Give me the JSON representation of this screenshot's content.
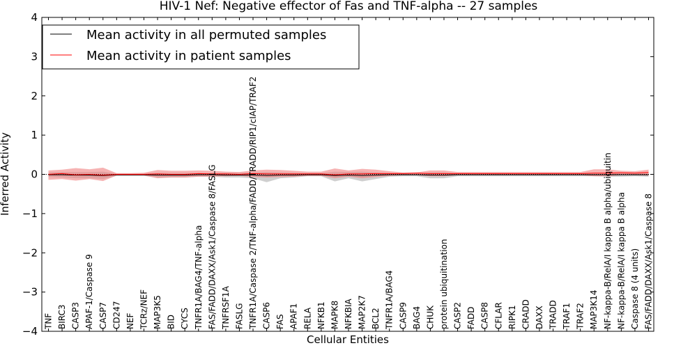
{
  "chart_data": {
    "type": "line",
    "title": "HIV-1 Nef: Negative effector of Fas and TNF-alpha -- 27 samples",
    "xlabel": "Cellular Entities",
    "ylabel": "Inferred Activity",
    "ylim": [
      -4,
      4
    ],
    "yticks": [
      -4,
      -3,
      -2,
      -1,
      0,
      1,
      2,
      3,
      4
    ],
    "ytick_labels": [
      "−4",
      "−3",
      "−2",
      "−1",
      "0",
      "1",
      "2",
      "3",
      "4"
    ],
    "categories": [
      "TNF",
      "BIRC3",
      "CASP3",
      "APAF-1/Caspase 9",
      "CASP7",
      "CD247",
      "NEF",
      "TCRz/NEF",
      "MAP3K5",
      "BID",
      "CYCS",
      "TNFR1A/BAG4/TNF-alpha",
      "FAS/FADD/DAXX/Ask1/Caspase 8/FASLG",
      "TNFRSF1A",
      "FASLG",
      "TNFR1A/Caspase 2/TNF-alpha/FADD/TRADD/RIP1/cIAP/TRAF2",
      "CASP6",
      "FAS",
      "APAF1",
      "RELA",
      "NFKB1",
      "MAPK8",
      "NFKBIA",
      "MAP2K7",
      "BCL2",
      "TNFR1A/BAG4",
      "CASP9",
      "BAG4",
      "CHUK",
      "protein ubiquitination",
      "CASP2",
      "FADD",
      "CASP8",
      "CFLAR",
      "RIPK1",
      "CRADD",
      "DAXX",
      "TRADD",
      "TRAF1",
      "TRAF2",
      "MAP3K14",
      "NF-kappa-B/RelA/I kappa B alpha/ubiquitin",
      "NF-kappa-B/RelA/I kappa B alpha",
      "Caspase 8 (4 units)",
      "FAS/FADD/DAXX/Ask1/Caspase 8"
    ],
    "series": [
      {
        "name": "Mean activity in all permuted samples",
        "color": "#000000",
        "values": [
          -0.01,
          -0.01,
          -0.02,
          -0.02,
          -0.03,
          -0.01,
          -0.01,
          -0.01,
          -0.02,
          -0.02,
          -0.02,
          -0.01,
          -0.01,
          -0.02,
          -0.02,
          -0.02,
          -0.03,
          -0.02,
          -0.02,
          -0.01,
          -0.01,
          -0.03,
          -0.02,
          -0.03,
          -0.02,
          -0.01,
          -0.01,
          -0.01,
          -0.02,
          -0.02,
          -0.01,
          -0.01,
          -0.01,
          -0.01,
          -0.01,
          -0.01,
          -0.01,
          -0.01,
          -0.01,
          -0.01,
          -0.01,
          -0.01,
          -0.01,
          -0.01,
          -0.01
        ],
        "band_upper": [
          0.05,
          0.06,
          0.06,
          0.06,
          0.07,
          0.02,
          0.02,
          0.02,
          0.04,
          0.04,
          0.04,
          0.03,
          0.03,
          0.04,
          0.04,
          0.05,
          0.06,
          0.05,
          0.04,
          0.03,
          0.03,
          0.07,
          0.06,
          0.07,
          0.05,
          0.03,
          0.02,
          0.02,
          0.05,
          0.05,
          0.02,
          0.02,
          0.02,
          0.02,
          0.02,
          0.02,
          0.02,
          0.02,
          0.02,
          0.02,
          0.02,
          0.03,
          0.03,
          0.02,
          0.03
        ],
        "band_lower": [
          -0.07,
          -0.08,
          -0.1,
          -0.1,
          -0.12,
          -0.04,
          -0.04,
          -0.04,
          -0.08,
          -0.08,
          -0.08,
          -0.06,
          -0.06,
          -0.08,
          -0.08,
          -0.1,
          -0.2,
          -0.1,
          -0.08,
          -0.05,
          -0.05,
          -0.18,
          -0.1,
          -0.18,
          -0.12,
          -0.06,
          -0.05,
          -0.05,
          -0.1,
          -0.1,
          -0.05,
          -0.05,
          -0.05,
          -0.05,
          -0.05,
          -0.05,
          -0.05,
          -0.05,
          -0.05,
          -0.05,
          -0.05,
          -0.06,
          -0.06,
          -0.05,
          -0.06
        ]
      },
      {
        "name": "Mean activity in patient samples",
        "color": "#ff0000",
        "values": [
          0.0,
          0.02,
          -0.01,
          0.0,
          -0.02,
          0.0,
          0.0,
          0.0,
          0.01,
          0.0,
          0.0,
          0.02,
          0.01,
          0.01,
          0.0,
          0.02,
          0.01,
          0.01,
          0.01,
          0.01,
          0.01,
          -0.01,
          0.01,
          0.01,
          0.02,
          0.02,
          0.02,
          0.03,
          0.02,
          0.02,
          0.02,
          0.02,
          0.02,
          0.02,
          0.02,
          0.02,
          0.02,
          0.02,
          0.02,
          0.02,
          0.03,
          0.03,
          0.04,
          0.03,
          0.05
        ],
        "band_upper": [
          0.1,
          0.12,
          0.16,
          0.13,
          0.17,
          0.03,
          0.03,
          0.04,
          0.11,
          0.09,
          0.09,
          0.1,
          0.09,
          0.07,
          0.06,
          0.1,
          0.12,
          0.11,
          0.09,
          0.07,
          0.07,
          0.15,
          0.1,
          0.14,
          0.12,
          0.08,
          0.05,
          0.05,
          0.1,
          0.1,
          0.06,
          0.06,
          0.06,
          0.06,
          0.06,
          0.06,
          0.06,
          0.06,
          0.06,
          0.06,
          0.13,
          0.13,
          0.09,
          0.08,
          0.12
        ],
        "band_lower": [
          -0.14,
          -0.12,
          -0.16,
          -0.12,
          -0.17,
          -0.03,
          -0.03,
          -0.03,
          -0.1,
          -0.08,
          -0.08,
          -0.06,
          -0.06,
          -0.05,
          -0.04,
          -0.07,
          -0.08,
          -0.07,
          -0.06,
          -0.04,
          -0.04,
          -0.1,
          -0.06,
          -0.1,
          -0.07,
          -0.04,
          -0.02,
          -0.02,
          -0.05,
          -0.05,
          -0.02,
          -0.02,
          -0.02,
          -0.02,
          -0.02,
          -0.02,
          -0.02,
          -0.02,
          -0.02,
          -0.02,
          -0.05,
          -0.05,
          -0.02,
          -0.02,
          -0.03
        ]
      }
    ],
    "reference_line": {
      "value": 0,
      "style": "dotted"
    },
    "legend": {
      "position": "upper-left"
    },
    "colors": {
      "patient_band": "#f08080",
      "permuted_band": "#bbbbbb"
    }
  }
}
